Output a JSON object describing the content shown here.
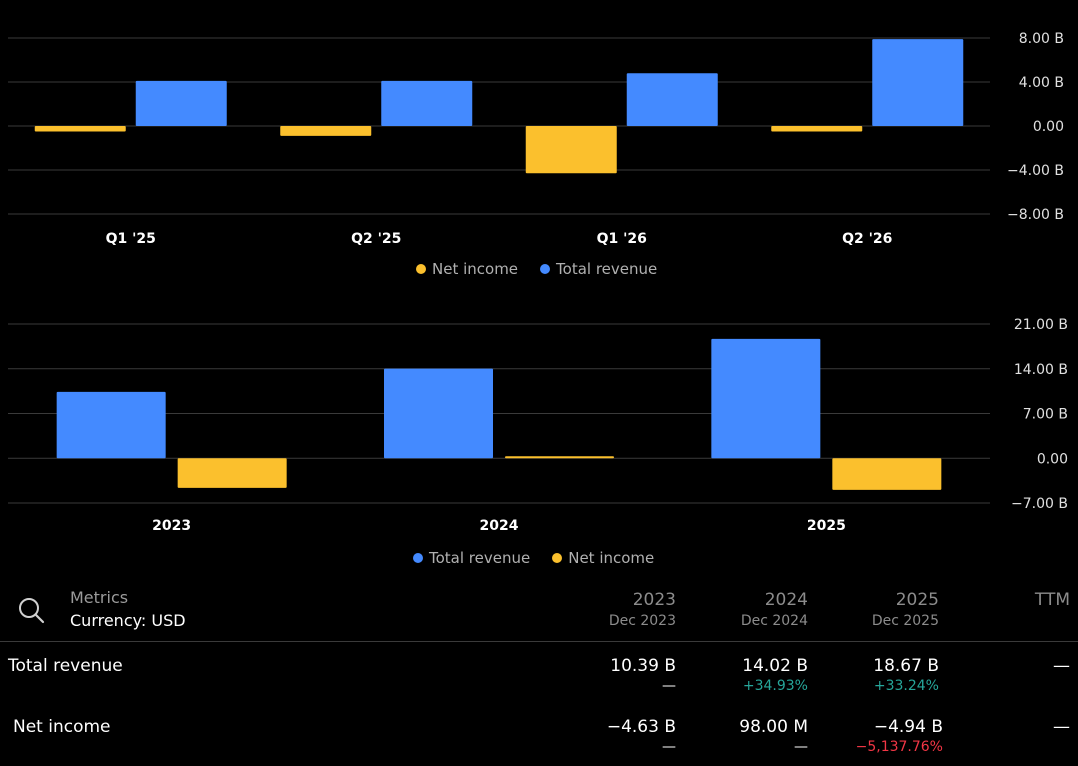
{
  "charts": [
    {
      "type": "bar",
      "categories": [
        "Q1 '25",
        "Q2 '25",
        "Q1 '26",
        "Q2 '26"
      ],
      "series": [
        {
          "name": "Net income",
          "color": "#fbc02d",
          "values": [
            -0.5,
            -0.9,
            -4.3,
            -0.5
          ]
        },
        {
          "name": "Total revenue",
          "color": "#448aff",
          "values": [
            4.1,
            4.1,
            4.8,
            7.9
          ]
        }
      ],
      "ylim": [
        -8,
        8
      ],
      "yticks": [
        8,
        4,
        0,
        -4,
        -8
      ],
      "ytick_labels": [
        "8.00 B",
        "4.00 B",
        "0.00",
        "−4.00 B",
        "−8.00 B"
      ],
      "legend": [
        "Net income",
        "Total revenue"
      ],
      "grid": true
    },
    {
      "type": "bar",
      "categories": [
        "2023",
        "2024",
        "2025"
      ],
      "series": [
        {
          "name": "Total revenue",
          "color": "#448aff",
          "values": [
            10.39,
            14.02,
            18.67
          ]
        },
        {
          "name": "Net income",
          "color": "#fbc02d",
          "values": [
            -4.63,
            0.098,
            -4.94
          ]
        }
      ],
      "ylim": [
        -7,
        21
      ],
      "yticks": [
        21,
        14,
        7,
        0,
        -7
      ],
      "ytick_labels": [
        "21.00 B",
        "14.00 B",
        "7.00 B",
        "0.00",
        "−7.00 B"
      ],
      "legend": [
        "Total revenue",
        "Net income"
      ],
      "grid": true
    }
  ],
  "table": {
    "metrics_label": "Metrics",
    "currency_label": "Currency: USD",
    "columns": [
      {
        "year": "2023",
        "sub": "Dec 2023"
      },
      {
        "year": "2024",
        "sub": "Dec 2024"
      },
      {
        "year": "2025",
        "sub": "Dec 2025"
      },
      {
        "year": "TTM",
        "sub": ""
      }
    ],
    "rows": [
      {
        "label": "Total revenue",
        "values": [
          "10.39 B",
          "14.02 B",
          "18.67 B",
          "—"
        ],
        "changes": [
          "—",
          "+34.93%",
          "+33.24%",
          ""
        ],
        "change_tone": [
          "neu",
          "pos",
          "pos",
          "neu"
        ]
      },
      {
        "label": "Net income",
        "values": [
          "−4.63 B",
          "98.00 M",
          "−4.94 B",
          "—"
        ],
        "changes": [
          "—",
          "—",
          "−5,137.76%",
          ""
        ],
        "change_tone": [
          "neu",
          "neu",
          "neg",
          "neu"
        ]
      }
    ]
  }
}
